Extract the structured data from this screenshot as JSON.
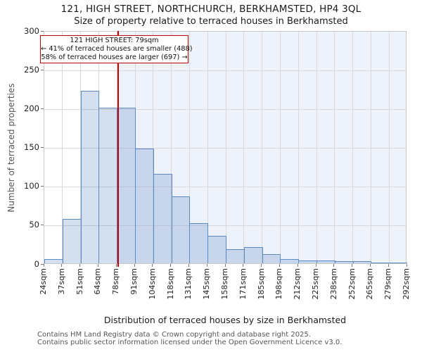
{
  "title": "121, HIGH STREET, NORTHCHURCH, BERKHAMSTED, HP4 3QL",
  "subtitle": "Size of property relative to terraced houses in Berkhamsted",
  "annotation": {
    "line1": "121 HIGH STREET: 79sqm",
    "line2": "← 41% of terraced houses are smaller (488)",
    "line3": "58% of terraced houses are larger (697) →"
  },
  "chart_data": {
    "type": "bar",
    "title": "121, HIGH STREET, NORTHCHURCH, BERKHAMSTED, HP4 3QL",
    "subtitle": "Size of property relative to terraced houses in Berkhamsted",
    "xlabel": "Distribution of terraced houses by size in Berkhamsted",
    "ylabel": "Number of terraced properties",
    "bin_edge_labels": [
      "24sqm",
      "37sqm",
      "51sqm",
      "64sqm",
      "78sqm",
      "91sqm",
      "104sqm",
      "118sqm",
      "131sqm",
      "145sqm",
      "158sqm",
      "171sqm",
      "185sqm",
      "198sqm",
      "212sqm",
      "225sqm",
      "238sqm",
      "252sqm",
      "265sqm",
      "279sqm",
      "292sqm"
    ],
    "bin_edges_sqm": [
      24,
      37,
      51,
      64,
      78,
      91,
      104,
      118,
      131,
      145,
      158,
      171,
      185,
      198,
      212,
      225,
      238,
      252,
      265,
      279,
      292
    ],
    "values": [
      5,
      57,
      222,
      200,
      200,
      148,
      115,
      86,
      52,
      35,
      18,
      21,
      12,
      5,
      4,
      4,
      3,
      3,
      1,
      1
    ],
    "ylim": [
      0,
      300
    ],
    "yticks": [
      0,
      50,
      100,
      150,
      200,
      250,
      300
    ],
    "grid": true,
    "legend": null,
    "marker": {
      "value_sqm": 79,
      "label": "121 HIGH STREET: 79sqm",
      "smaller_pct": "41%",
      "smaller_count": 488,
      "larger_pct": "58%",
      "larger_count": 697
    }
  },
  "footer": {
    "line1": "Contains HM Land Registry data © Crown copyright and database right 2025.",
    "line2": "Contains public sector information licensed under the Open Government Licence v3.0."
  },
  "colors": {
    "bar_fill": "#d9e4f4",
    "bar_edge": "#5b8ac6",
    "marker_red": "#c00000",
    "shade": "#eef3fb",
    "gridline": "#d8d8d8",
    "footer_text": "#555555"
  }
}
